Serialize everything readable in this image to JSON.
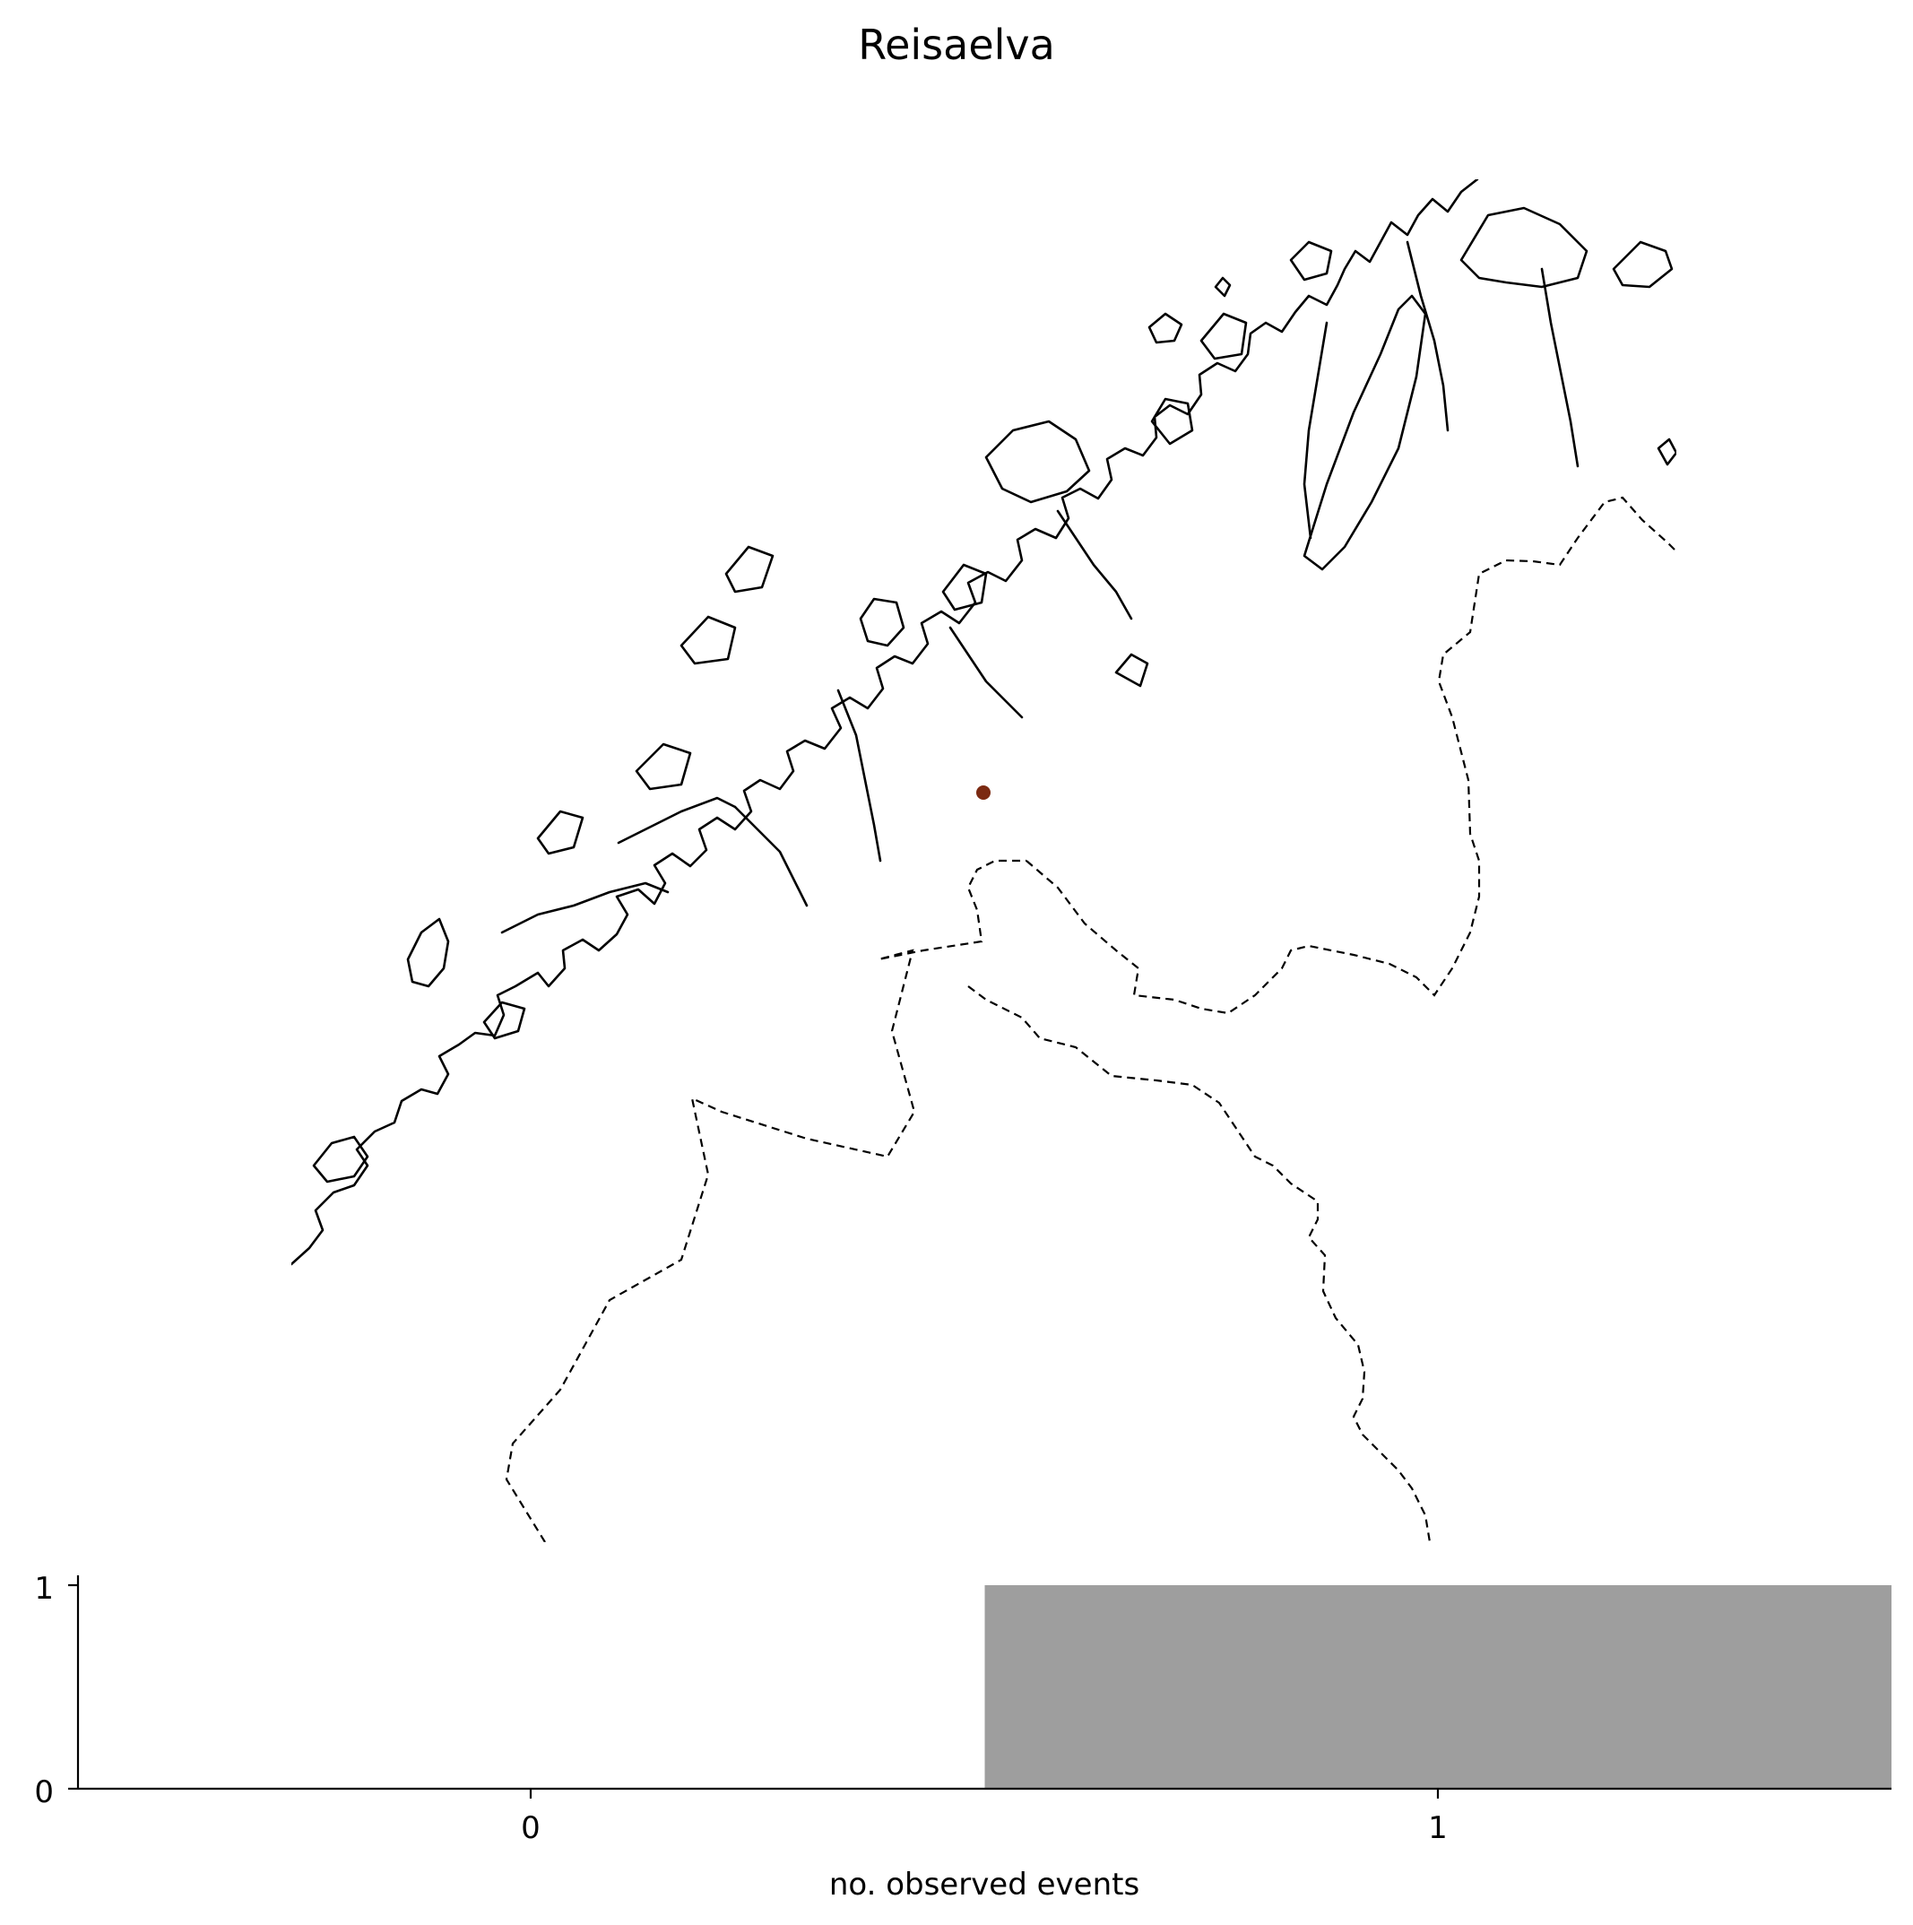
{
  "title": "Reisaelva",
  "map": {
    "station_color": "#7b2a12",
    "coast_color": "#000000",
    "border_color": "#000000"
  },
  "chart_data": {
    "type": "bar",
    "categories": [
      0,
      1
    ],
    "values": [
      0,
      1
    ],
    "xlabel": "no. observed events",
    "ylabel": "",
    "xticks": [
      "0",
      "1"
    ],
    "yticks": [
      "0",
      "1"
    ],
    "xlim": [
      -0.5,
      1.5
    ],
    "ylim": [
      0,
      1
    ],
    "bar_color": "#9e9e9e",
    "grid": false,
    "legend": "none"
  }
}
